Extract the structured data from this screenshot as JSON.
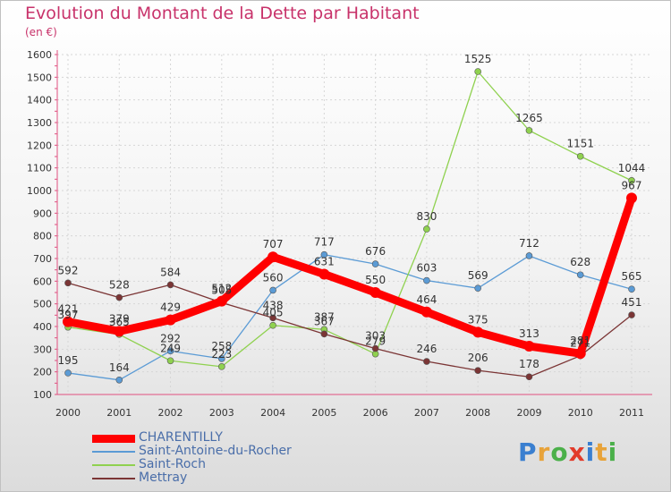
{
  "header": {
    "title": "Evolution du Montant de la Dette par Habitant",
    "subtitle": "(en €)"
  },
  "logo": {
    "letters": [
      "P",
      "r",
      "o",
      "x",
      "i",
      "t",
      "i"
    ],
    "colors": [
      "#3a7fd0",
      "#e8a33a",
      "#4bb04a",
      "#e23b2a",
      "#3a7fd0",
      "#e8a33a",
      "#4bb04a"
    ]
  },
  "chart_data": {
    "type": "line",
    "title": "Evolution du Montant de la Dette par Habitant",
    "subtitle": "(en €)",
    "x": [
      "2000",
      "2001",
      "2002",
      "2003",
      "2004",
      "2005",
      "2006",
      "2007",
      "2008",
      "2009",
      "2010",
      "2011"
    ],
    "ylim": [
      100,
      1600
    ],
    "yticks": [
      100,
      200,
      300,
      400,
      500,
      600,
      700,
      800,
      900,
      1000,
      1100,
      1200,
      1300,
      1400,
      1500,
      1600
    ],
    "grid": true,
    "legend_position": "bottom-left",
    "series": [
      {
        "name": "CHARENTILLY",
        "color": "#ff0000",
        "highlight": true,
        "values": [
          421,
          379,
          429,
          512,
          707,
          631,
          550,
          464,
          375,
          313,
          281,
          967
        ]
      },
      {
        "name": "Saint-Antoine-du-Rocher",
        "color": "#5b9bd5",
        "values": [
          195,
          164,
          292,
          258,
          560,
          717,
          676,
          603,
          569,
          712,
          628,
          565
        ]
      },
      {
        "name": "Saint-Roch",
        "color": "#8fd14f",
        "values": [
          397,
          365,
          249,
          223,
          405,
          387,
          279,
          830,
          1525,
          1265,
          1151,
          1044
        ]
      },
      {
        "name": "Mettray",
        "color": "#7b3535",
        "values": [
          592,
          528,
          584,
          505,
          438,
          367,
          303,
          246,
          206,
          178,
          271,
          451
        ]
      }
    ]
  }
}
